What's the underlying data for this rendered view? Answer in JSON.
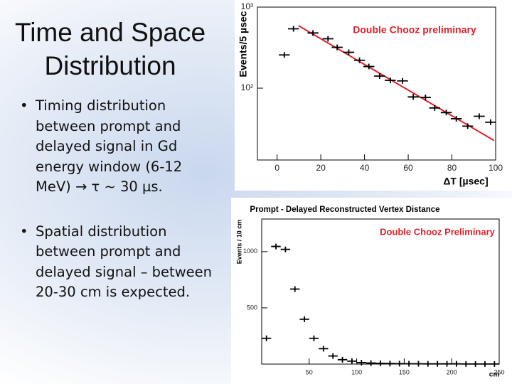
{
  "slide": {
    "title": "Time and Space Distribution",
    "bullets": [
      "Timing distribution between prompt and delayed signal in Gd energy window (6-12 MeV) → τ ~ 30 µs.",
      "Spatial distribution between prompt and delayed signal – between 20-30 cm is expected."
    ]
  },
  "chart_data": [
    {
      "type": "scatter",
      "annotation": "Double Chooz preliminary",
      "annotation_color": "#e0202a",
      "x_label": "ΔT [µsec]",
      "y_label": "Events/5 µsec",
      "x": [
        3.3,
        7.5,
        16.4,
        23.3,
        27.5,
        32.8,
        37.7,
        42,
        46.9,
        51.8,
        57.4,
        62.3,
        67.9,
        72.1,
        77.4,
        82,
        87.2,
        92.5,
        97.7
      ],
      "values": [
        257,
        540,
        480,
        407,
        319,
        277,
        221,
        185,
        141,
        125,
        123,
        78,
        77,
        57,
        50,
        42,
        34,
        45,
        38
      ],
      "color": "#000000",
      "log_y": true,
      "xlim": [
        -9,
        100
      ],
      "ylim": [
        13,
        1000
      ],
      "xticks": [
        0,
        20,
        40,
        60,
        80,
        100
      ],
      "yticks": [
        {
          "value": 100,
          "label": "10²"
        },
        {
          "value": 1000,
          "label": "10³"
        }
      ],
      "fit": {
        "x": [
          9.8,
          99.3
        ],
        "values": [
          590,
          22.6
        ],
        "color": "#e0202a"
      }
    },
    {
      "type": "scatter",
      "title": "Prompt - Delayed Reconstructed Vertex Distance",
      "annotation": "Double Chooz Preliminary",
      "annotation_color": "#e0202a",
      "x_label": "cm",
      "y_label": "Events / 10 cm",
      "x": [
        5,
        15,
        25,
        35,
        45,
        55,
        65,
        75,
        85,
        95,
        105,
        115,
        125,
        135,
        145,
        155,
        165,
        175,
        185,
        195,
        205,
        215,
        225,
        235,
        245
      ],
      "values": [
        229,
        1046,
        1020,
        667,
        399,
        229,
        137,
        72,
        39,
        26,
        13,
        9,
        7,
        5,
        4,
        3,
        3,
        2,
        2,
        2,
        2,
        1,
        1,
        1,
        1
      ],
      "color": "#000000",
      "log_y": false,
      "xlim": [
        0,
        250
      ],
      "ylim": [
        0,
        1290
      ],
      "xticks": [
        50,
        100,
        150,
        200,
        250
      ],
      "yticks": [
        500,
        1000
      ]
    }
  ]
}
